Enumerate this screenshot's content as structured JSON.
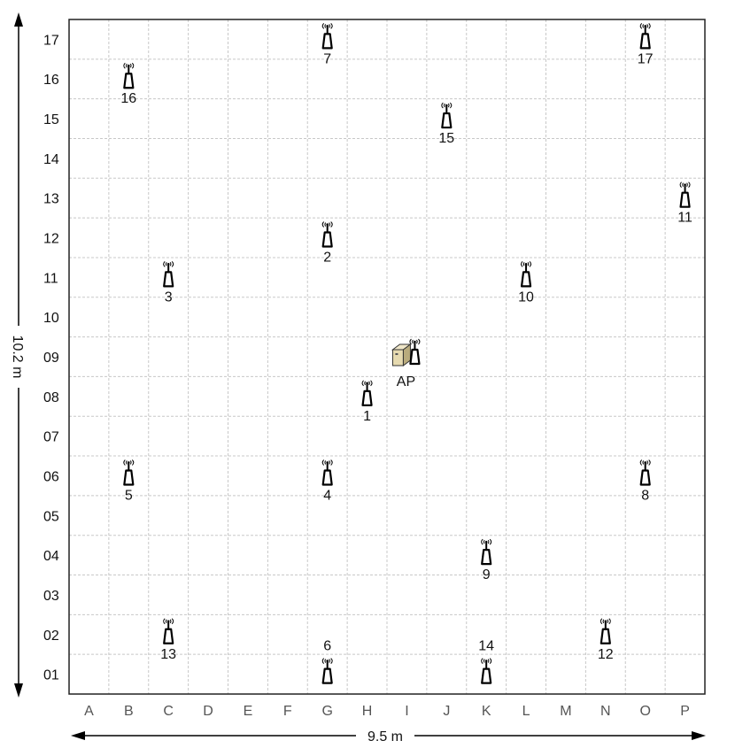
{
  "rows": [
    "17",
    "16",
    "15",
    "14",
    "13",
    "12",
    "11",
    "10",
    "09",
    "08",
    "07",
    "06",
    "05",
    "04",
    "03",
    "02",
    "01"
  ],
  "columns": [
    "A",
    "B",
    "C",
    "D",
    "E",
    "F",
    "G",
    "H",
    "I",
    "J",
    "K",
    "L",
    "M",
    "N",
    "O",
    "P"
  ],
  "dimensions": {
    "height": "10.2 m",
    "width": "9.5 m"
  },
  "access_point": {
    "label": "AP",
    "col": "I",
    "row": "09"
  },
  "sensors": [
    {
      "label": "1",
      "col": "H",
      "row": "08",
      "label_pos": "below"
    },
    {
      "label": "2",
      "col": "G",
      "row": "12",
      "label_pos": "below"
    },
    {
      "label": "3",
      "col": "C",
      "row": "11",
      "label_pos": "below"
    },
    {
      "label": "4",
      "col": "G",
      "row": "06",
      "label_pos": "below"
    },
    {
      "label": "5",
      "col": "B",
      "row": "06",
      "label_pos": "below"
    },
    {
      "label": "6",
      "col": "G",
      "row": "01",
      "label_pos": "above"
    },
    {
      "label": "7",
      "col": "G",
      "row": "17",
      "label_pos": "below"
    },
    {
      "label": "8",
      "col": "O",
      "row": "06",
      "label_pos": "below"
    },
    {
      "label": "9",
      "col": "K",
      "row": "04",
      "label_pos": "below"
    },
    {
      "label": "10",
      "col": "L",
      "row": "11",
      "label_pos": "below"
    },
    {
      "label": "11",
      "col": "P",
      "row": "13",
      "label_pos": "below"
    },
    {
      "label": "12",
      "col": "N",
      "row": "02",
      "label_pos": "below"
    },
    {
      "label": "13",
      "col": "C",
      "row": "02",
      "label_pos": "below"
    },
    {
      "label": "14",
      "col": "K",
      "row": "01",
      "label_pos": "above"
    },
    {
      "label": "15",
      "col": "J",
      "row": "15",
      "label_pos": "below"
    },
    {
      "label": "16",
      "col": "B",
      "row": "16",
      "label_pos": "below"
    },
    {
      "label": "17",
      "col": "O",
      "row": "17",
      "label_pos": "below"
    }
  ]
}
